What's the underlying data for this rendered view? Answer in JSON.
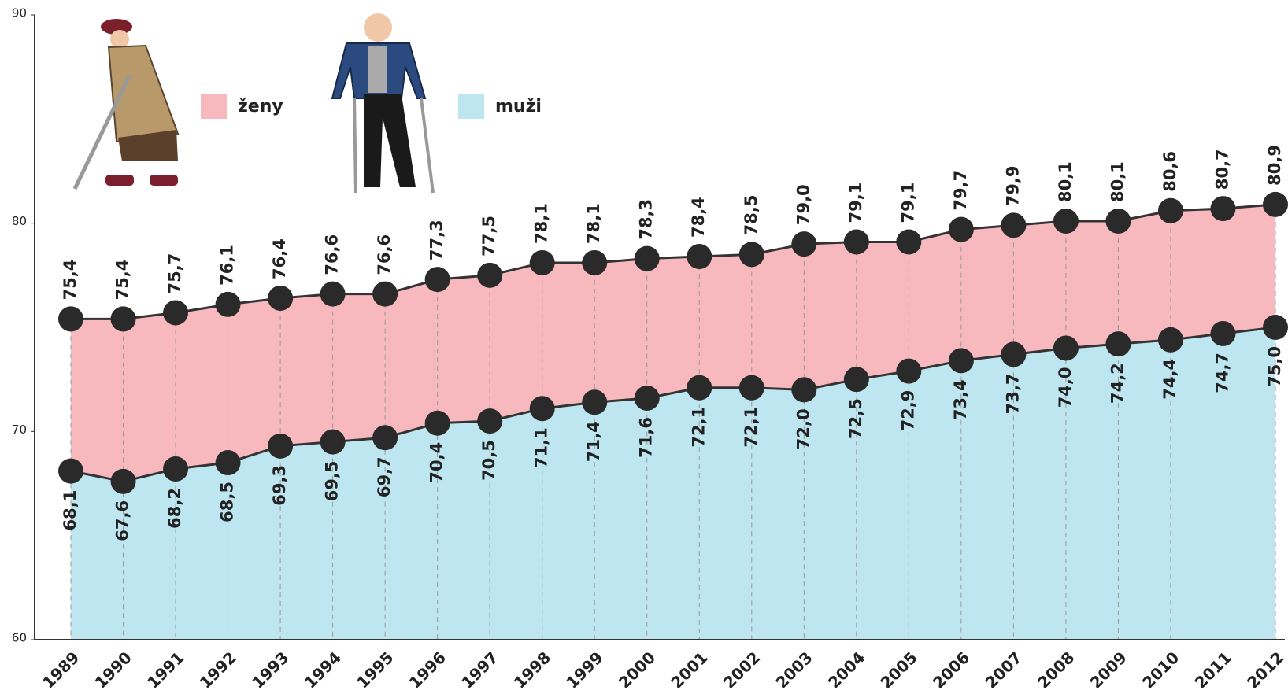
{
  "chart_data": {
    "type": "area",
    "categories": [
      "1989",
      "1990",
      "1991",
      "1992",
      "1993",
      "1994",
      "1995",
      "1996",
      "1997",
      "1998",
      "1999",
      "2000",
      "2001",
      "2002",
      "2003",
      "2004",
      "2005",
      "2006",
      "2007",
      "2008",
      "2009",
      "2010",
      "2011",
      "2012"
    ],
    "series": [
      {
        "name": "ženy",
        "color": "#f7b9be",
        "values": [
          75.4,
          75.4,
          75.7,
          76.1,
          76.4,
          76.6,
          76.6,
          77.3,
          77.5,
          78.1,
          78.1,
          78.3,
          78.4,
          78.5,
          79.0,
          79.1,
          79.1,
          79.7,
          79.9,
          80.1,
          80.1,
          80.6,
          80.7,
          80.9
        ],
        "value_labels": [
          "75,4",
          "75,4",
          "75,7",
          "76,1",
          "76,4",
          "76,6",
          "76,6",
          "77,3",
          "77,5",
          "78,1",
          "78,1",
          "78,3",
          "78,4",
          "78,5",
          "79,0",
          "79,1",
          "79,1",
          "79,7",
          "79,9",
          "80,1",
          "80,1",
          "80,6",
          "80,7",
          "80,9"
        ]
      },
      {
        "name": "muži",
        "color": "#bde6f0",
        "values": [
          68.1,
          67.6,
          68.2,
          68.5,
          69.3,
          69.5,
          69.7,
          70.4,
          70.5,
          71.1,
          71.4,
          71.6,
          72.1,
          72.1,
          72.0,
          72.5,
          72.9,
          73.4,
          73.7,
          74.0,
          74.2,
          74.4,
          74.7,
          75.0
        ],
        "value_labels": [
          "68,1",
          "67,6",
          "68,2",
          "68,5",
          "69,3",
          "69,5",
          "69,7",
          "70,4",
          "70,5",
          "71,1",
          "71,4",
          "71,6",
          "72,1",
          "72,1",
          "72,0",
          "72,5",
          "72,9",
          "73,4",
          "73,7",
          "74,0",
          "74,2",
          "74,4",
          "74,7",
          "75,0"
        ]
      }
    ],
    "ylim": [
      60,
      90
    ],
    "yticks": [
      60,
      70,
      80,
      90
    ]
  }
}
